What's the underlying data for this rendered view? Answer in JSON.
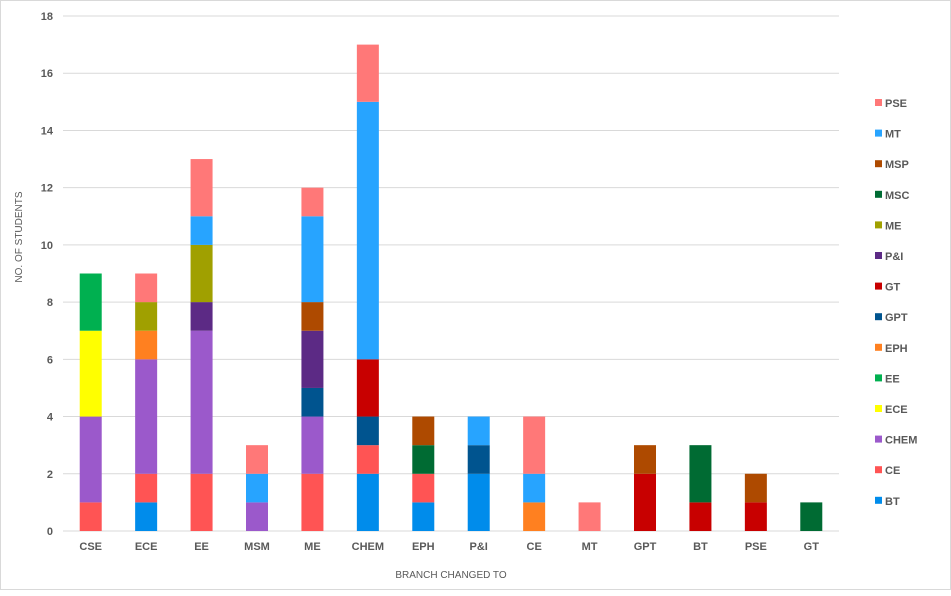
{
  "chart_data": {
    "type": "bar",
    "stacked": true,
    "xlabel": "BRANCH CHANGED TO",
    "ylabel": "NO. OF STUDENTS",
    "ylim": [
      0,
      18
    ],
    "yticks": [
      0,
      2,
      4,
      6,
      8,
      10,
      12,
      14,
      16,
      18
    ],
    "grid": true,
    "legend_position": "right",
    "categories": [
      "CSE",
      "ECE",
      "EE",
      "MSM",
      "ME",
      "CHEM",
      "EPH",
      "P&I",
      "CE",
      "MT",
      "GPT",
      "BT",
      "PSE",
      "GT"
    ],
    "series": [
      {
        "name": "BT",
        "color": "#008ceb",
        "values": [
          0,
          1,
          0,
          0,
          0,
          2,
          1,
          2,
          0,
          0,
          0,
          0,
          0,
          0
        ]
      },
      {
        "name": "CE",
        "color": "#ff5454",
        "values": [
          1,
          1,
          2,
          0,
          2,
          1,
          1,
          0,
          0,
          0,
          0,
          0,
          0,
          0
        ]
      },
      {
        "name": "CHEM",
        "color": "#9b59cb",
        "values": [
          3,
          4,
          5,
          1,
          2,
          0,
          0,
          0,
          0,
          0,
          0,
          0,
          0,
          0
        ]
      },
      {
        "name": "ECE",
        "color": "#ffff00",
        "values": [
          3,
          0,
          0,
          0,
          0,
          0,
          0,
          0,
          0,
          0,
          0,
          0,
          0,
          0
        ]
      },
      {
        "name": "EE",
        "color": "#00b050",
        "values": [
          2,
          0,
          0,
          0,
          0,
          0,
          0,
          0,
          0,
          0,
          0,
          0,
          0,
          0
        ]
      },
      {
        "name": "EPH",
        "color": "#ff8020",
        "values": [
          0,
          1,
          0,
          0,
          0,
          0,
          0,
          0,
          1,
          0,
          0,
          0,
          0,
          0
        ]
      },
      {
        "name": "GPT",
        "color": "#00548f",
        "values": [
          0,
          0,
          0,
          0,
          1,
          1,
          0,
          1,
          0,
          0,
          0,
          0,
          0,
          0
        ]
      },
      {
        "name": "GT",
        "color": "#c80000",
        "values": [
          0,
          0,
          0,
          0,
          0,
          2,
          0,
          0,
          0,
          0,
          2,
          1,
          1,
          0
        ]
      },
      {
        "name": "P&I",
        "color": "#5c2a85",
        "values": [
          0,
          0,
          1,
          0,
          2,
          0,
          0,
          0,
          0,
          0,
          0,
          0,
          0,
          0
        ]
      },
      {
        "name": "ME",
        "color": "#a0a000",
        "values": [
          0,
          1,
          2,
          0,
          0,
          0,
          0,
          0,
          0,
          0,
          0,
          0,
          0,
          0
        ]
      },
      {
        "name": "MSC",
        "color": "#006b33",
        "values": [
          0,
          0,
          0,
          0,
          0,
          0,
          1,
          0,
          0,
          0,
          0,
          2,
          0,
          1
        ]
      },
      {
        "name": "MSP",
        "color": "#ae4a00",
        "values": [
          0,
          0,
          0,
          0,
          1,
          0,
          1,
          0,
          0,
          0,
          1,
          0,
          1,
          0
        ]
      },
      {
        "name": "MT",
        "color": "#27a4ff",
        "values": [
          0,
          0,
          1,
          1,
          3,
          9,
          0,
          1,
          1,
          0,
          0,
          0,
          0,
          0
        ]
      },
      {
        "name": "PSE",
        "color": "#ff7878",
        "values": [
          0,
          1,
          2,
          1,
          1,
          2,
          0,
          0,
          2,
          1,
          0,
          0,
          0,
          0
        ]
      }
    ]
  }
}
